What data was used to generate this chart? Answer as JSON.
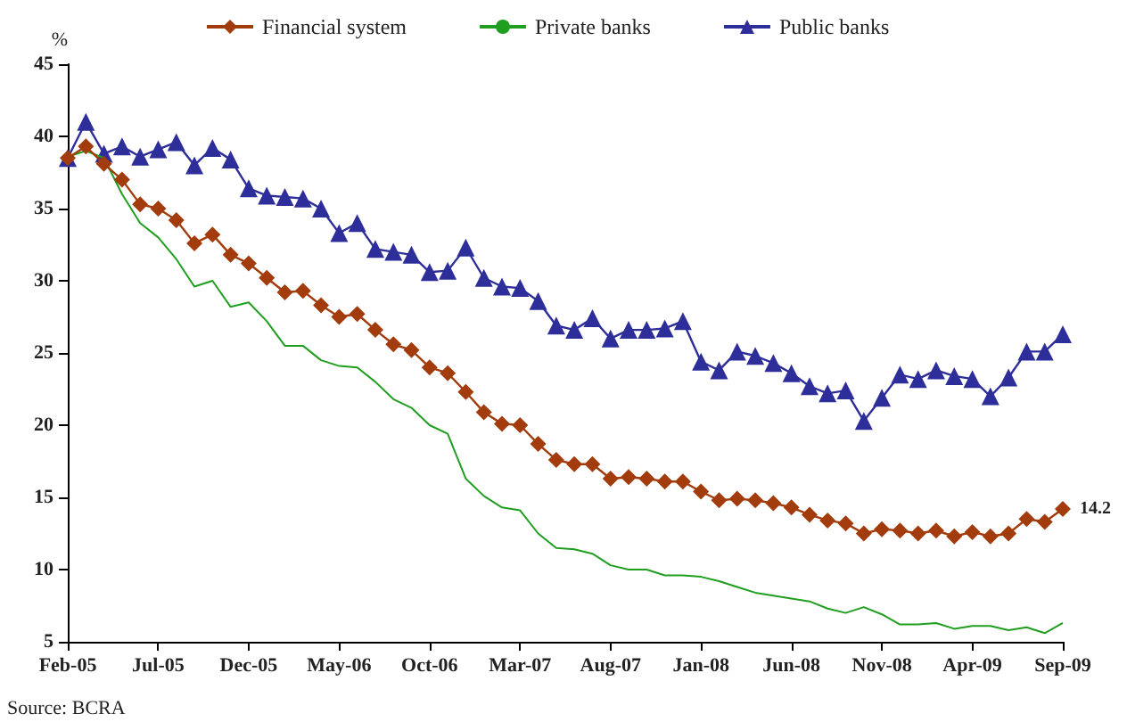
{
  "chart_data": {
    "type": "line",
    "ylabel": "%",
    "categories": [
      "Feb-05",
      null,
      null,
      null,
      null,
      "Jul-05",
      null,
      null,
      null,
      null,
      "Dec-05",
      null,
      null,
      null,
      null,
      "May-06",
      null,
      null,
      null,
      null,
      "Oct-06",
      null,
      null,
      null,
      null,
      "Mar-07",
      null,
      null,
      null,
      null,
      "Aug-07",
      null,
      null,
      null,
      null,
      "Jan-08",
      null,
      null,
      null,
      null,
      "Jun-08",
      null,
      null,
      null,
      null,
      "Nov-08",
      null,
      null,
      null,
      null,
      "Apr-09",
      null,
      null,
      null,
      null,
      "Sep-09"
    ],
    "series": [
      {
        "name": "Financial system",
        "color": "#a33c0c",
        "marker": "diamond",
        "values": [
          38.5,
          39.3,
          38.1,
          37.0,
          35.3,
          35.0,
          34.2,
          32.6,
          33.2,
          31.8,
          31.2,
          30.2,
          29.2,
          29.3,
          28.3,
          27.5,
          27.7,
          26.6,
          25.6,
          25.2,
          24.0,
          23.6,
          22.3,
          20.9,
          20.1,
          20.0,
          18.7,
          17.6,
          17.3,
          17.3,
          16.3,
          16.4,
          16.3,
          16.1,
          16.1,
          15.4,
          14.8,
          14.9,
          14.8,
          14.6,
          14.3,
          13.8,
          13.4,
          13.2,
          12.5,
          12.8,
          12.7,
          12.5,
          12.7,
          12.3,
          12.6,
          12.3,
          12.5,
          13.5,
          13.3,
          14.2
        ],
        "value_labels": [
          null,
          null,
          null,
          null,
          null,
          null,
          null,
          null,
          null,
          null,
          null,
          null,
          null,
          null,
          null,
          null,
          null,
          null,
          null,
          null,
          null,
          null,
          null,
          null,
          null,
          null,
          null,
          null,
          null,
          null,
          null,
          null,
          null,
          null,
          null,
          null,
          null,
          null,
          null,
          null,
          null,
          null,
          null,
          null,
          null,
          null,
          null,
          null,
          null,
          null,
          null,
          null,
          null,
          null,
          null,
          "14.2"
        ]
      },
      {
        "name": "Private banks",
        "color": "#1f9e1f",
        "marker": "none",
        "values": [
          38.6,
          39.0,
          38.5,
          36.0,
          34.0,
          33.0,
          31.5,
          29.6,
          30.0,
          28.2,
          28.5,
          27.2,
          25.5,
          25.5,
          24.5,
          24.1,
          24.0,
          23.0,
          21.8,
          21.2,
          20.0,
          19.4,
          16.3,
          15.1,
          14.3,
          14.1,
          12.5,
          11.5,
          11.4,
          11.1,
          10.3,
          10.0,
          10.0,
          9.6,
          9.6,
          9.5,
          9.2,
          8.8,
          8.4,
          8.2,
          8.0,
          7.8,
          7.3,
          7.0,
          7.4,
          6.9,
          6.2,
          6.2,
          6.3,
          5.9,
          6.1,
          6.1,
          5.8,
          6.0,
          5.6,
          6.3
        ]
      },
      {
        "name": "Public banks",
        "color": "#2e2e9a",
        "marker": "triangle",
        "values": [
          38.5,
          41.0,
          38.8,
          39.3,
          38.6,
          39.1,
          39.6,
          38.0,
          39.2,
          38.4,
          36.4,
          35.9,
          35.8,
          35.7,
          35.0,
          33.3,
          34.0,
          32.2,
          32.0,
          31.8,
          30.6,
          30.7,
          32.3,
          30.2,
          29.6,
          29.5,
          28.6,
          26.9,
          26.6,
          27.4,
          26.0,
          26.6,
          26.6,
          26.7,
          27.2,
          24.4,
          23.8,
          25.1,
          24.8,
          24.3,
          23.6,
          22.7,
          22.2,
          22.4,
          20.3,
          21.9,
          23.5,
          23.2,
          23.8,
          23.4,
          23.2,
          22.0,
          23.3,
          25.1,
          25.1,
          26.3
        ]
      }
    ],
    "ylim": [
      5,
      45
    ],
    "yticks": [
      5,
      10,
      15,
      20,
      25,
      30,
      35,
      40,
      45
    ],
    "grid": false,
    "legend": "top",
    "annotations": [
      "Source: BCRA"
    ]
  }
}
